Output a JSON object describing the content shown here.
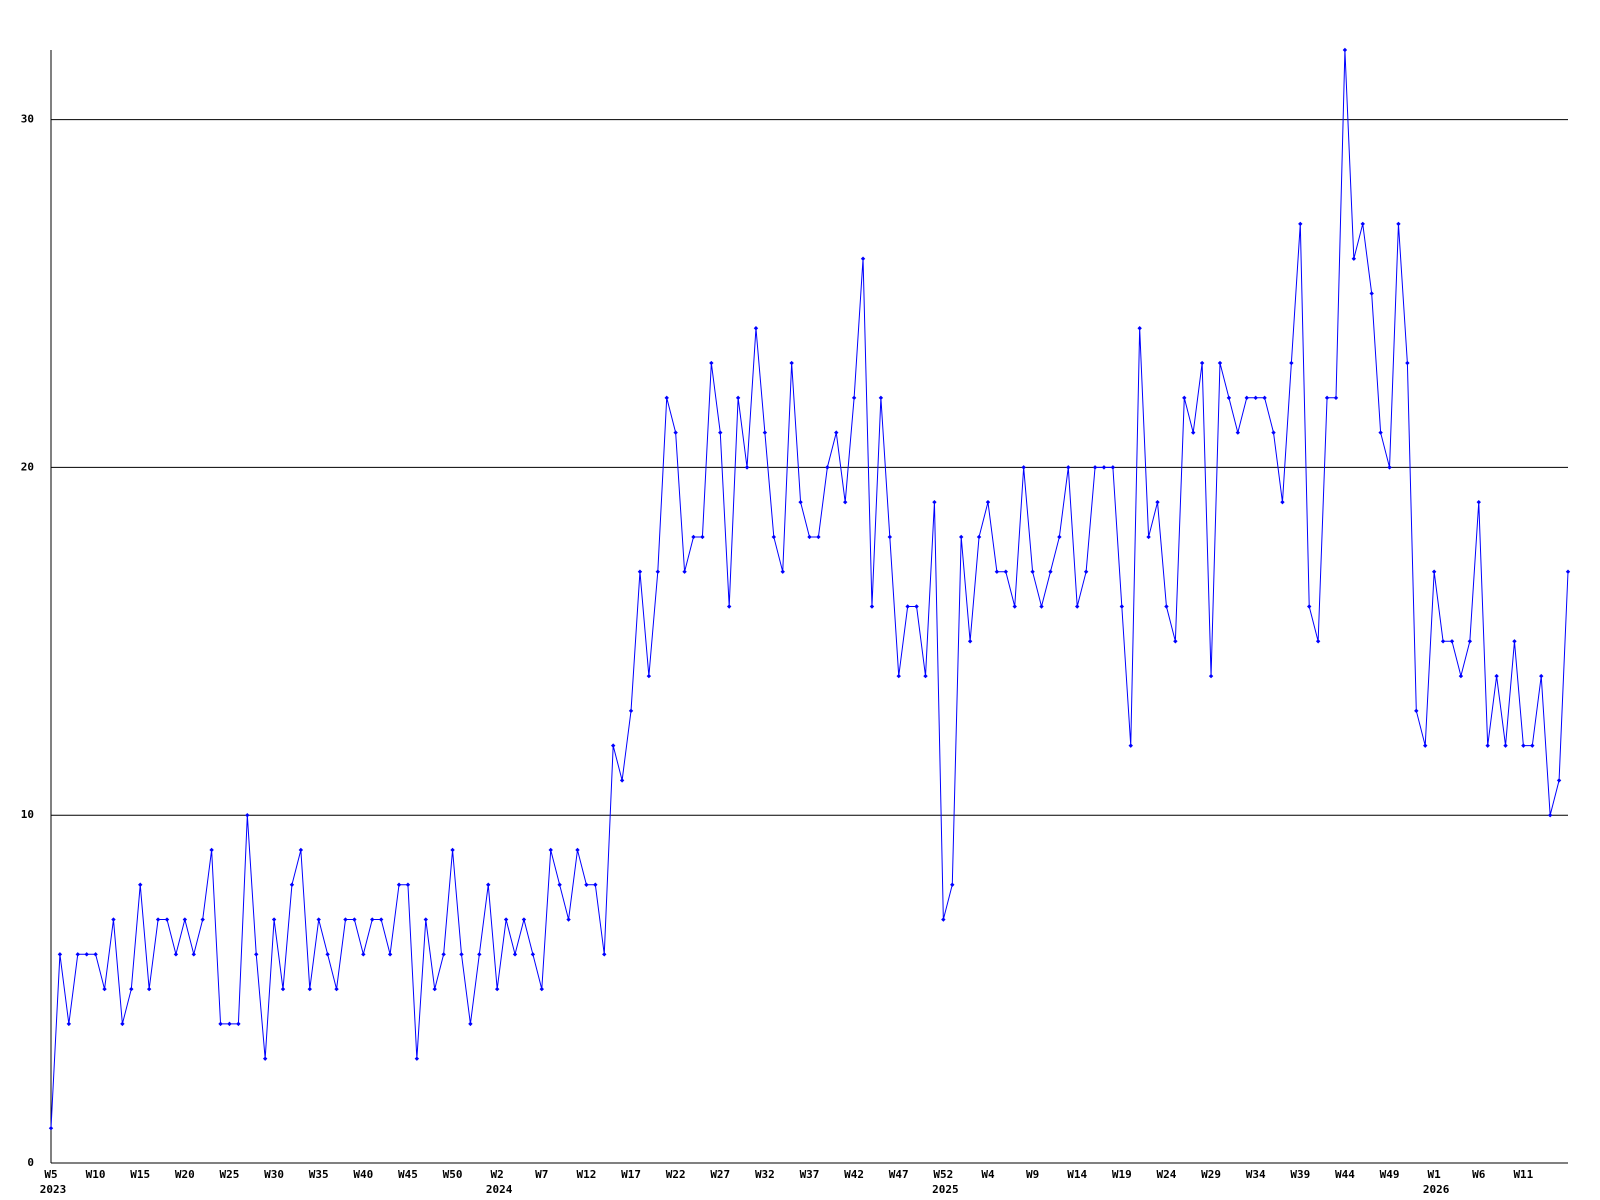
{
  "chart_data": {
    "type": "line",
    "categories": [
      "W5",
      null,
      null,
      null,
      null,
      "W10",
      null,
      null,
      null,
      null,
      "W15",
      null,
      null,
      null,
      null,
      "W20",
      null,
      null,
      null,
      null,
      "W25",
      null,
      null,
      null,
      null,
      "W30",
      null,
      null,
      null,
      null,
      "W35",
      null,
      null,
      null,
      null,
      "W40",
      null,
      null,
      null,
      null,
      "W45",
      null,
      null,
      null,
      null,
      "W50",
      null,
      null,
      null,
      null,
      "W2",
      null,
      null,
      null,
      null,
      "W7",
      null,
      null,
      null,
      null,
      "W12",
      null,
      null,
      null,
      null,
      "W17",
      null,
      null,
      null,
      null,
      "W22",
      null,
      null,
      null,
      null,
      "W27",
      null,
      null,
      null,
      null,
      "W32",
      null,
      null,
      null,
      null,
      "W37",
      null,
      null,
      null,
      null,
      "W42",
      null,
      null,
      null,
      null,
      "W47",
      null,
      null,
      null,
      null,
      "W52",
      null,
      null,
      null,
      null,
      "W4",
      null,
      null,
      null,
      null,
      "W9",
      null,
      null,
      null,
      null,
      "W14",
      null,
      null,
      null,
      null,
      "W19",
      null,
      null,
      null,
      null,
      "W24",
      null,
      null,
      null,
      null,
      "W29",
      null,
      null,
      null,
      null,
      "W34",
      null,
      null,
      null,
      null,
      "W39",
      null,
      null,
      null,
      null,
      "W44",
      null,
      null,
      null,
      null,
      "W49",
      null,
      null,
      null,
      null,
      "W1",
      null,
      null,
      null,
      null,
      "W6",
      null,
      null,
      null,
      null,
      "W11",
      null,
      null,
      null,
      null,
      null
    ],
    "year_labels": [
      "2023",
      null,
      null,
      null,
      null,
      null,
      null,
      null,
      null,
      null,
      null,
      null,
      null,
      null,
      null,
      null,
      null,
      null,
      null,
      null,
      null,
      null,
      null,
      null,
      null,
      null,
      null,
      null,
      null,
      null,
      null,
      null,
      null,
      null,
      null,
      null,
      null,
      null,
      null,
      null,
      null,
      null,
      null,
      null,
      null,
      null,
      null,
      null,
      null,
      null,
      "2024",
      null,
      null,
      null,
      null,
      null,
      null,
      null,
      null,
      null,
      null,
      null,
      null,
      null,
      null,
      null,
      null,
      null,
      null,
      null,
      null,
      null,
      null,
      null,
      null,
      null,
      null,
      null,
      null,
      null,
      null,
      null,
      null,
      null,
      null,
      null,
      null,
      null,
      null,
      null,
      null,
      null,
      null,
      null,
      null,
      null,
      null,
      null,
      null,
      null,
      "2025",
      null,
      null,
      null,
      null,
      null,
      null,
      null,
      null,
      null,
      null,
      null,
      null,
      null,
      null,
      null,
      null,
      null,
      null,
      null,
      null,
      null,
      null,
      null,
      null,
      null,
      null,
      null,
      null,
      null,
      null,
      null,
      null,
      null,
      null,
      null,
      null,
      null,
      null,
      null,
      null,
      null,
      null,
      null,
      null,
      null,
      null,
      null,
      null,
      null,
      null,
      null,
      null,
      null,
      null,
      "2026",
      null,
      null,
      null,
      null,
      null,
      null,
      null,
      null,
      null,
      null,
      null,
      null,
      null,
      null,
      null
    ],
    "values": [
      1,
      6,
      4,
      6,
      6,
      6,
      5,
      7,
      4,
      5,
      8,
      5,
      7,
      7,
      6,
      7,
      6,
      7,
      9,
      4,
      4,
      4,
      10,
      6,
      3,
      7,
      5,
      8,
      9,
      5,
      7,
      6,
      5,
      7,
      7,
      6,
      7,
      7,
      6,
      8,
      8,
      3,
      7,
      5,
      6,
      9,
      6,
      4,
      6,
      8,
      5,
      7,
      6,
      7,
      6,
      5,
      9,
      8,
      7,
      9,
      8,
      8,
      6,
      12,
      11,
      13,
      17,
      14,
      17,
      22,
      21,
      17,
      18,
      18,
      23,
      21,
      16,
      22,
      20,
      24,
      21,
      18,
      17,
      23,
      19,
      18,
      18,
      20,
      21,
      19,
      22,
      26,
      16,
      22,
      18,
      14,
      16,
      16,
      14,
      19,
      7,
      8,
      18,
      15,
      18,
      19,
      17,
      17,
      16,
      20,
      17,
      16,
      17,
      18,
      20,
      16,
      17,
      20,
      20,
      20,
      16,
      12,
      24,
      18,
      19,
      16,
      15,
      22,
      21,
      23,
      14,
      23,
      22,
      21,
      22,
      22,
      22,
      21,
      19,
      23,
      27,
      16,
      15,
      22,
      22,
      32,
      26,
      27,
      25,
      21,
      20,
      27,
      23,
      13,
      12,
      17,
      15,
      15,
      14,
      15,
      19,
      12,
      14,
      12,
      15,
      12,
      12,
      14,
      10,
      11,
      17
    ],
    "color": "#0000ff",
    "ylim": [
      0,
      32
    ],
    "yticks": [
      0,
      10,
      20,
      30
    ],
    "grid": true
  }
}
